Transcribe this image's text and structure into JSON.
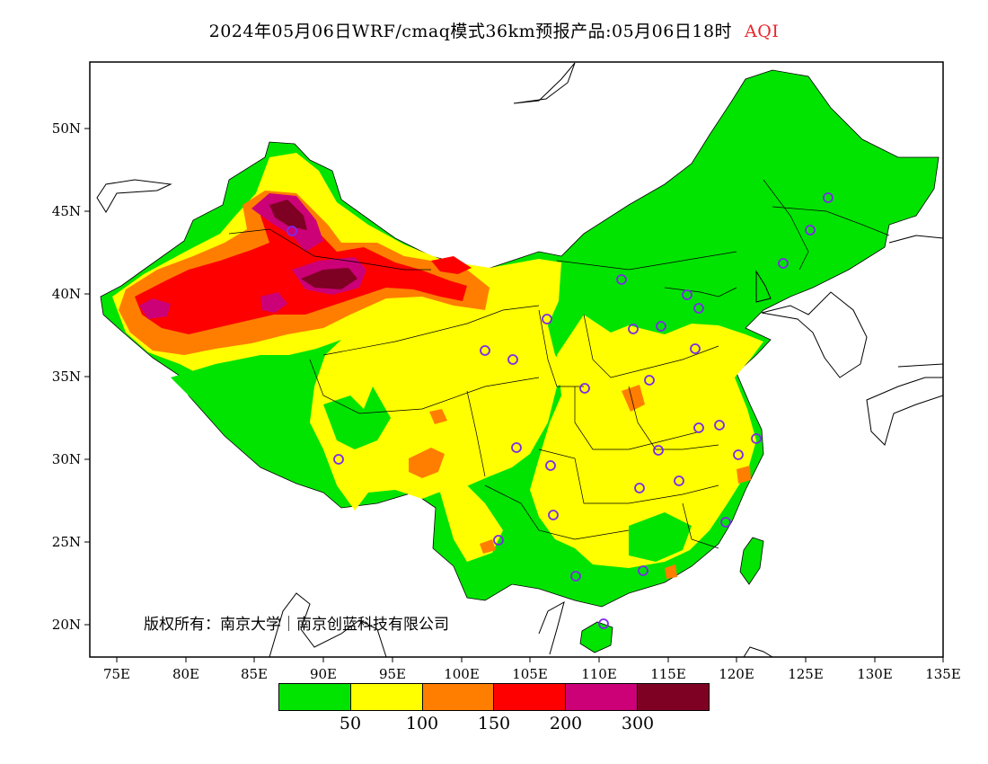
{
  "title": {
    "main": "2024年05月06日WRF/cmaq模式36km预报产品:05月06日18时",
    "variable": "AQI"
  },
  "axes": {
    "lon_labels": [
      "75E",
      "80E",
      "85E",
      "90E",
      "95E",
      "100E",
      "105E",
      "110E",
      "115E",
      "120E",
      "125E",
      "130E",
      "135E"
    ],
    "lat_labels": [
      "50N",
      "45N",
      "40N",
      "35N",
      "30N",
      "25N",
      "20N"
    ]
  },
  "legend": {
    "colors": [
      "#00e400",
      "#ffff00",
      "#ff7e00",
      "#ff0000",
      "#cc0077",
      "#7e0023"
    ],
    "labels": [
      "50",
      "100",
      "150",
      "200",
      "300"
    ]
  },
  "copyright": "版权所有：南京大学｜南京创蓝科技有限公司",
  "station_marker_color": "#7d2ae8"
}
